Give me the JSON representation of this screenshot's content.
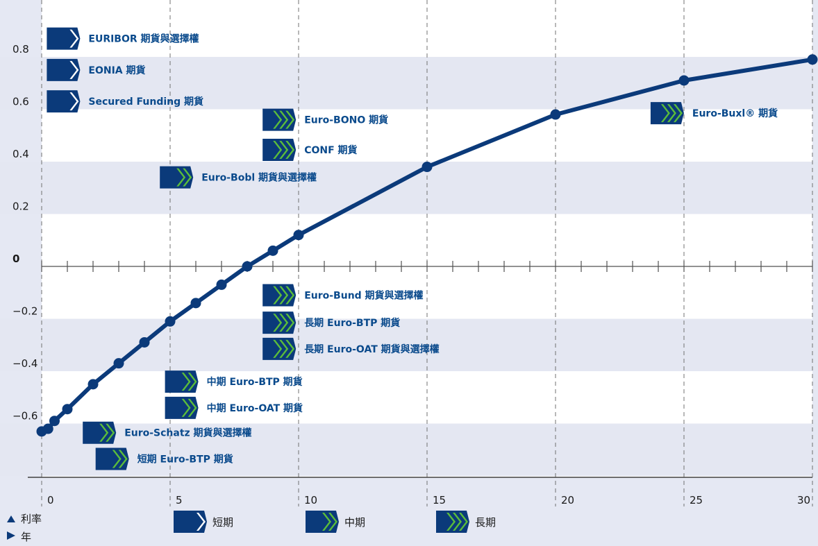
{
  "chart_data": {
    "type": "line",
    "x_tick_labels": [
      "0",
      "5",
      "10",
      "15",
      "20",
      "25",
      "30"
    ],
    "y_tick_labels": [
      "0.8",
      "0.6",
      "0.4",
      "0.2",
      "0",
      "−0.2",
      "−0.4",
      "−0.6"
    ],
    "xlim": [
      0,
      30
    ],
    "ylim": [
      -0.8,
      1.0
    ],
    "grid": true,
    "series": [
      {
        "x": [
          0,
          0.25,
          0.5,
          1,
          2,
          3,
          4,
          5,
          6,
          7,
          8,
          9,
          10,
          15,
          20,
          25,
          30
        ],
        "y": [
          -0.63,
          -0.62,
          -0.59,
          -0.545,
          -0.45,
          -0.37,
          -0.29,
          -0.21,
          -0.14,
          -0.07,
          0.0,
          0.06,
          0.12,
          0.38,
          0.58,
          0.71,
          0.79
        ]
      }
    ],
    "annotations": [
      {
        "text": "EURIBOR 期貨與選擇權",
        "tier": "short",
        "x": 0.2,
        "y": 0.87
      },
      {
        "text": "EONIA 期貨",
        "tier": "short",
        "x": 0.2,
        "y": 0.75
      },
      {
        "text": "Secured Funding 期貨",
        "tier": "short",
        "x": 0.2,
        "y": 0.63
      },
      {
        "text": "Euro-BONO 期貨",
        "tier": "long",
        "x": 8.6,
        "y": 0.56
      },
      {
        "text": "CONF 期貨",
        "tier": "long",
        "x": 8.6,
        "y": 0.445
      },
      {
        "text": "Euro-Bobl 期貨與選擇權",
        "tier": "medium",
        "x": 4.6,
        "y": 0.34
      },
      {
        "text": "Euro-Buxl® 期貨",
        "tier": "long",
        "x": 23.7,
        "y": 0.585
      },
      {
        "text": "Euro-Bund 期貨與選擇權",
        "tier": "long",
        "x": 8.6,
        "y": -0.11
      },
      {
        "text": "長期 Euro-BTP 期貨",
        "tier": "long",
        "x": 8.6,
        "y": -0.215
      },
      {
        "text": "長期 Euro-OAT 期貨與選擇權",
        "tier": "long",
        "x": 8.6,
        "y": -0.315
      },
      {
        "text": "中期 Euro-BTP 期貨",
        "tier": "medium",
        "x": 4.8,
        "y": -0.44
      },
      {
        "text": "中期 Euro-OAT 期貨",
        "tier": "medium",
        "x": 4.8,
        "y": -0.54
      },
      {
        "text": "Euro-Schatz 期貨與選擇權",
        "tier": "medium",
        "x": 1.6,
        "y": -0.635
      },
      {
        "text": "短期 Euro-BTP 期貨",
        "tier": "medium",
        "x": 2.1,
        "y": -0.735
      }
    ],
    "legend": {
      "position": "bottom",
      "axis_y_label": "利率",
      "axis_x_label": "年",
      "items": [
        {
          "tier": "short",
          "label": "短期"
        },
        {
          "tier": "medium",
          "label": "中期"
        },
        {
          "tier": "long",
          "label": "長期"
        }
      ]
    }
  },
  "colors": {
    "background": "#e5e8f3",
    "band": "#e4e7f2",
    "navy": "#0b3a7a",
    "green": "#5bbd3a",
    "label": "#0a4a8c"
  }
}
